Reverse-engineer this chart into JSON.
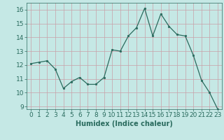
{
  "x": [
    0,
    1,
    2,
    3,
    4,
    5,
    6,
    7,
    8,
    9,
    10,
    11,
    12,
    13,
    14,
    15,
    16,
    17,
    18,
    19,
    20,
    21,
    22,
    23
  ],
  "y": [
    12.1,
    12.2,
    12.3,
    11.7,
    10.3,
    10.8,
    11.1,
    10.6,
    10.6,
    11.1,
    13.1,
    13.0,
    14.1,
    14.7,
    16.1,
    14.1,
    15.7,
    14.8,
    14.2,
    14.1,
    12.7,
    10.9,
    10.0,
    8.8
  ],
  "line_color": "#2a6b5e",
  "marker": "o",
  "marker_size": 1.8,
  "bg_color": "#c5e8e5",
  "grid_color": "#c8a0a8",
  "tick_color": "#2a6b5e",
  "xlabel": "Humidex (Indice chaleur)",
  "ylabel": "",
  "xlim": [
    -0.5,
    23.5
  ],
  "ylim": [
    8.8,
    16.5
  ],
  "yticks": [
    9,
    10,
    11,
    12,
    13,
    14,
    15,
    16
  ],
  "xticks": [
    0,
    1,
    2,
    3,
    4,
    5,
    6,
    7,
    8,
    9,
    10,
    11,
    12,
    13,
    14,
    15,
    16,
    17,
    18,
    19,
    20,
    21,
    22,
    23
  ],
  "axes_color": "#2a6b5e",
  "label_fontsize": 7,
  "tick_fontsize": 6.5
}
